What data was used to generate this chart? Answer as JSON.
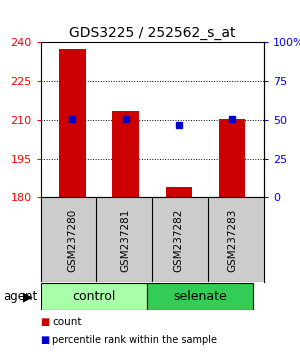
{
  "title": "GDS3225 / 252562_s_at",
  "samples": [
    "GSM237280",
    "GSM237281",
    "GSM237282",
    "GSM237283"
  ],
  "red_values": [
    237.5,
    213.5,
    184.0,
    210.5
  ],
  "blue_values": [
    210.5,
    210.5,
    208.0,
    210.5
  ],
  "ylim": [
    180,
    240
  ],
  "yticks": [
    180,
    195,
    210,
    225,
    240
  ],
  "y2ticks": [
    0,
    25,
    50,
    75,
    100
  ],
  "y2labels": [
    "0",
    "25",
    "50",
    "75",
    "100%"
  ],
  "bar_width": 0.5,
  "red_color": "#CC0000",
  "blue_color": "#0000CC",
  "bar_bottom": 180,
  "bg_xtick": "#cccccc",
  "bg_control": "#aaffaa",
  "bg_selenate": "#33cc55"
}
